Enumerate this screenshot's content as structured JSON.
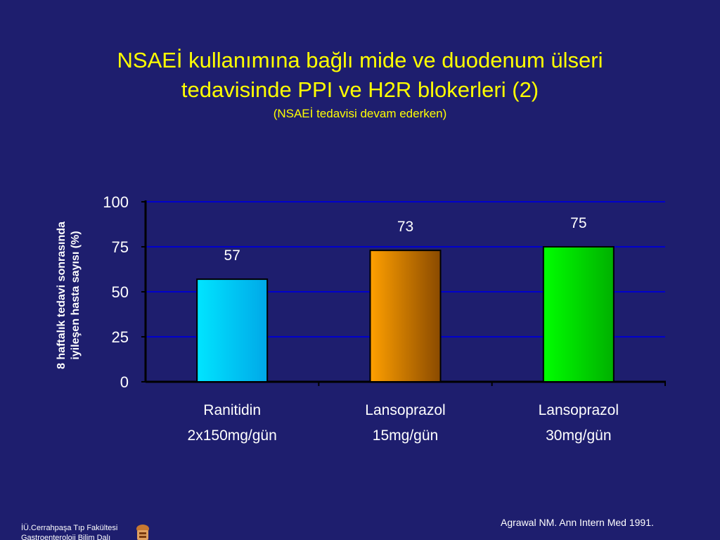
{
  "slide": {
    "title_line1": "NSAEİ kullanımına bağlı mide ve duodenum ülseri",
    "title_line2": "tedavisinde PPI ve H2R blokerleri (2)",
    "subtitle": "(NSAEİ tedavisi devam ederken)",
    "footer_line1": "İÜ.Cerrahpaşa Tıp Fakültesi",
    "footer_line2": "Gastroenteroloji Bilim Dalı",
    "citation": "Agrawal NM. Ann Intern Med 1991."
  },
  "colors": {
    "background": "#1e1e6e",
    "title": "#ffff00",
    "gridline": "#0000cc",
    "text": "#ffffff"
  },
  "chart_data": {
    "type": "bar",
    "ylabel_line1": "8 haftalık tedavi sonrasında",
    "ylabel_line2": "iyileşen hasta sayısı  (%)",
    "ylim": [
      0,
      100
    ],
    "yticks": [
      0,
      25,
      50,
      75,
      100
    ],
    "grid": true,
    "categories": [
      [
        "Ranitidin",
        "2x150mg/gün"
      ],
      [
        "Lansoprazol",
        "15mg/gün"
      ],
      [
        "Lansoprazol",
        "30mg/gün"
      ]
    ],
    "values": [
      57,
      73,
      75
    ],
    "data_labels": [
      "57",
      "73",
      "75"
    ],
    "bar_colors": [
      [
        "#00e5ff",
        "#00a8e8"
      ],
      [
        "#ffa000",
        "#8a4a00"
      ],
      [
        "#00ff00",
        "#00b000"
      ]
    ]
  }
}
